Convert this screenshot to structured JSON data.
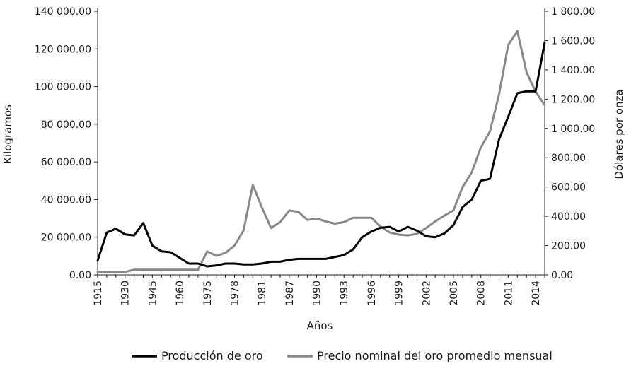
{
  "chart_data": {
    "type": "line",
    "xlabel": "Años",
    "ylabel_left": "Kilogramos",
    "ylabel_right": "Dólares por onza",
    "x_tick_labels": [
      "1915",
      "1930",
      "1945",
      "1960",
      "1975",
      "1978",
      "1981",
      "1987",
      "1990",
      "1993",
      "1996",
      "1999",
      "2002",
      "2005",
      "2008",
      "2011",
      "2014"
    ],
    "y_left_ticks": [
      "0.00",
      "20 000.00",
      "40 000.00",
      "60 000.00",
      "80 000.00",
      "100 000.00",
      "120 000.00",
      "140 000.00"
    ],
    "y_right_ticks": [
      "0.00",
      "200.00",
      "400.00",
      "600.00",
      "800.00",
      "1 000.00",
      "1 200.00",
      "1 400.00",
      "1 600.00",
      "1 800.00"
    ],
    "ylim_left": [
      0,
      140000
    ],
    "ylim_right": [
      0,
      1800
    ],
    "grid": false,
    "legend_position": "bottom",
    "x_index": [
      0,
      0.5,
      1,
      1.5,
      2,
      2.5,
      3,
      3.5,
      4,
      4.5,
      5,
      5.5,
      6,
      6.5,
      7,
      7.5,
      8,
      8.5,
      9,
      9.5,
      10,
      10.5,
      11,
      11.5,
      12,
      12.5,
      13,
      13.5,
      14,
      14.5,
      15,
      15.5,
      16,
      16.5,
      17,
      17.5,
      18,
      18.5,
      19,
      19.5,
      20,
      20.5,
      21,
      21.5,
      22,
      22.5,
      23,
      23.5,
      24,
      24.5
    ],
    "series": [
      {
        "name": "Producción de oro",
        "axis": "left",
        "color": "#000000",
        "values": [
          7500,
          22500,
          24500,
          21500,
          21000,
          27500,
          15500,
          12500,
          12000,
          9000,
          6000,
          6000,
          4500,
          5000,
          6000,
          6000,
          5500,
          5500,
          6000,
          7000,
          7000,
          8000,
          8500,
          8500,
          8500,
          8500,
          9500,
          10500,
          13500,
          20000,
          23000,
          25000,
          25500,
          23000,
          25500,
          23500,
          20500,
          20000,
          22000,
          26500,
          36000,
          40000,
          50000,
          51000,
          72000,
          84000,
          96500,
          97500,
          97500,
          123500
        ]
      },
      {
        "name": "Precio nominal del oro promedio mensual",
        "axis": "right",
        "color": "#888888",
        "values": [
          20,
          20,
          20,
          20,
          35,
          35,
          35,
          35,
          35,
          35,
          35,
          35,
          160,
          130,
          150,
          200,
          305,
          615,
          460,
          320,
          360,
          440,
          430,
          375,
          385,
          365,
          350,
          360,
          390,
          390,
          390,
          330,
          290,
          275,
          270,
          280,
          320,
          365,
          405,
          440,
          600,
          700,
          870,
          980,
          1235,
          1570,
          1665,
          1385,
          1250,
          1160
        ]
      }
    ]
  }
}
